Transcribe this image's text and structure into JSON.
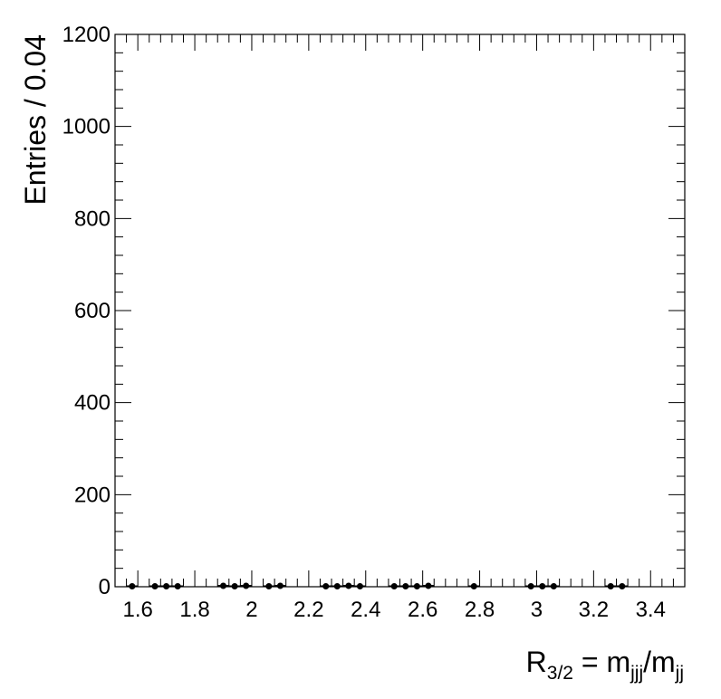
{
  "chart_data": {
    "type": "scatter",
    "xlabel": {
      "base": "R",
      "base_sub": "3/2",
      "equals": " = ",
      "num": "m",
      "num_sub": "jjj",
      "slash": "/",
      "den": "m",
      "den_sub": "jj"
    },
    "ylabel": "Entries / 0.04",
    "xlim": [
      1.52,
      3.52
    ],
    "ylim": [
      0,
      1200
    ],
    "x_ticks": [
      1.6,
      1.8,
      2.0,
      2.2,
      2.4,
      2.6,
      2.8,
      3.0,
      3.2,
      3.4
    ],
    "x_tick_labels": [
      "1.6",
      "1.8",
      "2",
      "2.2",
      "2.4",
      "2.6",
      "2.8",
      "3",
      "3.2",
      "3.4"
    ],
    "y_ticks": [
      0,
      200,
      400,
      600,
      800,
      1000,
      1200
    ],
    "y_tick_labels": [
      "0",
      "200",
      "400",
      "600",
      "800",
      "1000",
      "1200"
    ],
    "grid": false,
    "legend": "none",
    "series": [
      {
        "x": [
          1.58,
          1.66,
          1.7,
          1.74,
          1.9,
          1.94,
          1.98,
          2.06,
          2.1,
          2.26,
          2.3,
          2.34,
          2.38,
          2.5,
          2.54,
          2.58,
          2.62,
          2.78,
          2.98,
          3.02,
          3.06,
          3.26,
          3.3
        ],
        "y": [
          1,
          1,
          1,
          1,
          2,
          1,
          2,
          1,
          2,
          1,
          1,
          2,
          1,
          1,
          1,
          1,
          2,
          1,
          1,
          1,
          1,
          1,
          1
        ]
      }
    ]
  }
}
